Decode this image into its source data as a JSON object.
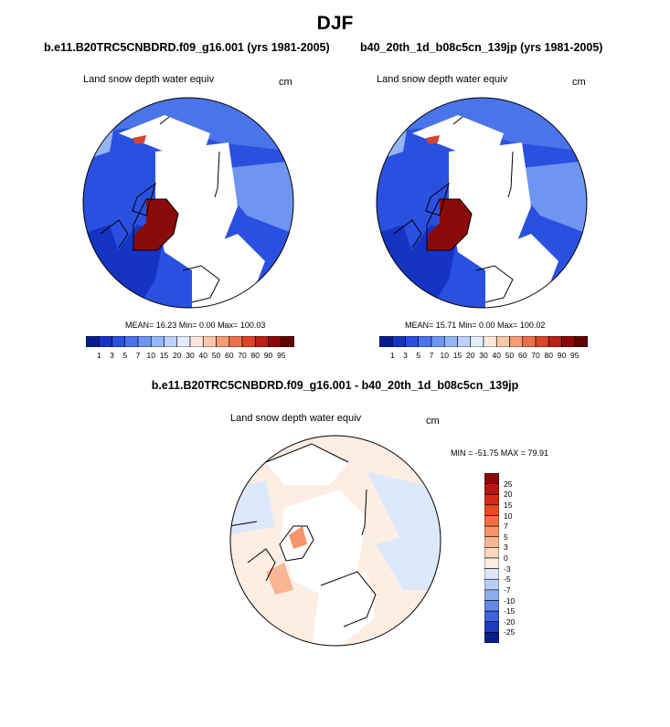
{
  "title": "DJF",
  "panels": [
    {
      "case": "b.e11.B20TRC5CNBDRD.f09_g16.001 (yrs 1981-2005)",
      "variable": "Land snow depth water equiv",
      "units": "cm",
      "stats": "MEAN=  16.23  Min=   0.00  Max= 100.03"
    },
    {
      "case": "b40_20th_1d_b08c5cn_139jp (yrs 1981-2005)",
      "variable": "Land snow depth water equiv",
      "units": "cm",
      "stats": "MEAN=  15.71  Min=   0.00  Max= 100.02"
    }
  ],
  "diff": {
    "title": "b.e11.B20TRC5CNBDRD.f09_g16.001 - b40_20th_1d_b08c5cn_139jp",
    "variable": "Land snow depth water equiv",
    "units": "cm",
    "stats": "MIN = -51.75 MAX =  79.91"
  },
  "chart_data": [
    {
      "type": "heatmap",
      "projection": "north polar stereographic",
      "colorbar_orientation": "horizontal",
      "levels": [
        "1",
        "3",
        "5",
        "7",
        "10",
        "15",
        "20",
        "30",
        "40",
        "50",
        "60",
        "70",
        "80",
        "90",
        "95"
      ],
      "colors": [
        "#0a1e8a",
        "#1634c4",
        "#2a50e0",
        "#4a74ea",
        "#6e96f0",
        "#94b6f5",
        "#bcd2fa",
        "#e4ecfc",
        "#fde9dc",
        "#f9c7aa",
        "#f39c78",
        "#e9704c",
        "#d8442a",
        "#b8201a",
        "#8a0a0a",
        "#600404"
      ]
    },
    {
      "type": "heatmap",
      "projection": "north polar stereographic",
      "colorbar_orientation": "vertical",
      "levels": [
        "25",
        "20",
        "15",
        "10",
        "7",
        "5",
        "3",
        "0",
        "-3",
        "-5",
        "-7",
        "-10",
        "-15",
        "-20",
        "-25"
      ],
      "colors": [
        "#8a0a0a",
        "#b01a10",
        "#d42c14",
        "#ea4a22",
        "#f47040",
        "#f6946a",
        "#f8b694",
        "#fbd8c0",
        "#fdeee4",
        "#dde8fa",
        "#b8ccf4",
        "#8eacee",
        "#6488e6",
        "#3e62da",
        "#1e3cc0",
        "#0a1e8a"
      ]
    }
  ]
}
